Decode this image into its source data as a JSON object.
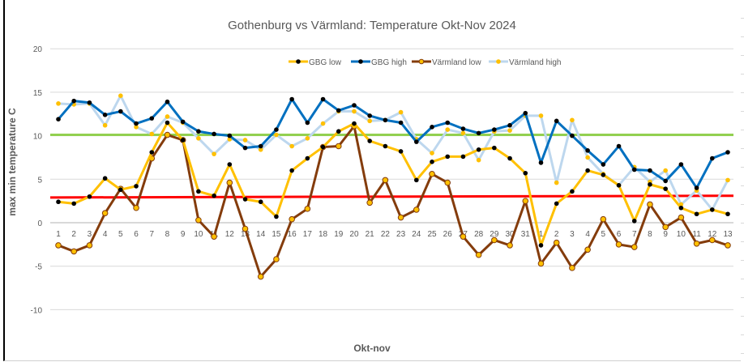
{
  "chart_data": {
    "type": "line",
    "title": "Gothenburg vs Värmland: Temperature Okt-Nov 2024",
    "xlabel": "Okt-nov",
    "ylabel": "max min temperature C",
    "ylim": [
      -15,
      20
    ],
    "yticks": [
      20,
      15,
      10,
      5,
      0,
      -5,
      -10
    ],
    "grid": true,
    "legend_position": "top",
    "categories": [
      "1",
      "2",
      "3",
      "4",
      "5",
      "6",
      "7",
      "8",
      "9",
      "10",
      "11",
      "12",
      "13",
      "14",
      "15",
      "16",
      "17",
      "18",
      "19",
      "20",
      "21",
      "22",
      "23",
      "24",
      "25",
      "26",
      "27",
      "28",
      "29",
      "30",
      "31",
      "1",
      "2",
      "3",
      "4",
      "5",
      "6",
      "7",
      "8",
      "9",
      "10",
      "11",
      "12",
      "13"
    ],
    "series": [
      {
        "name": "GBG low",
        "color": "#FFC000",
        "marker": "#000000",
        "values": [
          2.4,
          2.2,
          3.0,
          5.1,
          3.8,
          4.2,
          8.1,
          11.5,
          9.5,
          3.6,
          3.1,
          6.7,
          2.7,
          2.4,
          0.7,
          6.0,
          7.4,
          8.7,
          10.5,
          11.4,
          9.4,
          8.8,
          8.2,
          4.9,
          7.0,
          7.6,
          7.6,
          8.4,
          8.6,
          7.4,
          5.7,
          -2.6,
          2.2,
          3.6,
          6.0,
          5.5,
          4.3,
          0.2,
          4.4,
          3.9,
          1.7,
          1.0,
          1.5,
          1.0
        ]
      },
      {
        "name": "GBG high",
        "color": "#0070C0",
        "marker": "#000000",
        "values": [
          11.9,
          14.0,
          13.8,
          12.4,
          12.8,
          11.4,
          12.0,
          13.9,
          11.6,
          10.5,
          10.2,
          10.0,
          8.6,
          8.8,
          10.7,
          14.2,
          11.5,
          14.2,
          12.9,
          13.5,
          12.3,
          11.8,
          11.5,
          9.3,
          11.0,
          11.5,
          10.8,
          10.3,
          10.7,
          11.2,
          12.6,
          6.9,
          11.7,
          10.0,
          8.3,
          6.7,
          8.8,
          6.1,
          6.0,
          4.8,
          6.7,
          4.0,
          7.4,
          8.1
        ]
      },
      {
        "name": "Värmland low",
        "color": "#843C0C",
        "marker": "#FFC000",
        "values": [
          -2.6,
          -3.3,
          -2.6,
          1.1,
          3.9,
          1.7,
          7.4,
          10.1,
          9.5,
          0.3,
          -1.6,
          4.6,
          -0.7,
          -6.2,
          -4.2,
          0.4,
          1.6,
          8.7,
          8.8,
          11.1,
          2.3,
          4.9,
          0.6,
          1.5,
          5.6,
          4.6,
          -1.6,
          -3.7,
          -2.0,
          -2.6,
          2.5,
          -4.7,
          -2.3,
          -5.2,
          -3.1,
          0.4,
          -2.5,
          -2.8,
          2.1,
          -0.5,
          0.6,
          -2.4,
          -2.0,
          -2.6
        ]
      },
      {
        "name": "Värmland high",
        "color": "#BDD7EE",
        "marker": "#FFC000",
        "values": [
          13.7,
          13.6,
          13.7,
          11.2,
          14.6,
          11.0,
          10.2,
          12.2,
          11.5,
          9.7,
          7.9,
          9.6,
          9.5,
          8.4,
          10.1,
          8.8,
          9.7,
          11.4,
          12.8,
          12.8,
          11.7,
          11.8,
          12.7,
          9.6,
          8.0,
          10.7,
          10.3,
          7.2,
          10.5,
          10.6,
          12.3,
          12.3,
          4.6,
          11.8,
          7.5,
          5.6,
          4.3,
          6.4,
          4.7,
          6.0,
          2.1,
          3.7,
          1.5,
          4.9
        ]
      }
    ],
    "reference_lines": [
      {
        "color": "#92D050",
        "start": 10.1,
        "end": 10.1
      },
      {
        "color": "#FF0000",
        "start": 2.9,
        "end": 3.1
      }
    ]
  }
}
